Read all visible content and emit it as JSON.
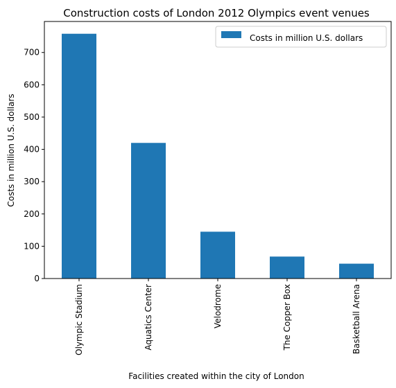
{
  "chart_data": {
    "type": "bar",
    "title": "Construction costs of London 2012 Olympics event venues",
    "xlabel": "Facilities created within the city of London",
    "ylabel": "Costs in million U.S. dollars",
    "categories": [
      "Olympic Stadium",
      "Aquatics Center",
      "Velodrome",
      "The Copper Box",
      "Basketball Arena"
    ],
    "series": [
      {
        "name": "Costs in million U.S. dollars",
        "values": [
          758,
          420,
          145,
          68,
          46
        ],
        "color": "#1f77b4"
      }
    ],
    "ylim": [
      0,
      796
    ],
    "yticks": [
      0,
      100,
      200,
      300,
      400,
      500,
      600,
      700
    ],
    "grid": false,
    "legend_position": "top-right"
  }
}
